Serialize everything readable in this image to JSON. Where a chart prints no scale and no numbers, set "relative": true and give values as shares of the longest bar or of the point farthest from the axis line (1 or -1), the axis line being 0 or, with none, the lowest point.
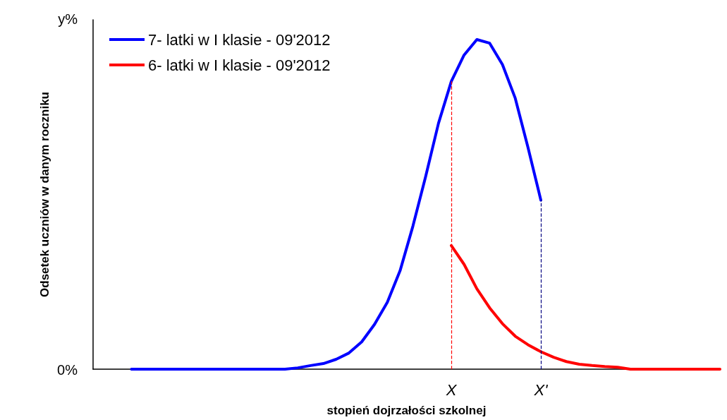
{
  "chart_data": {
    "type": "line",
    "relative": true,
    "xlabel": "stopień dojrzałości szkolnej",
    "ylabel": "Odsetek uczniów w danym roczniku",
    "annotations": [
      "0%",
      "y%"
    ],
    "categories": [
      null,
      null,
      null,
      null,
      null,
      null,
      null,
      null,
      null,
      null,
      null,
      null,
      null,
      null,
      null,
      null,
      null,
      null,
      null,
      null,
      null,
      null,
      null,
      null,
      null,
      null,
      null,
      null,
      "X",
      null,
      null,
      null,
      null,
      null,
      null,
      "X'",
      null,
      null,
      null,
      null,
      null,
      null,
      null,
      null,
      null,
      null,
      null,
      null,
      null,
      null
    ],
    "grid": false,
    "legend": "top left",
    "marker": "none",
    "line_style": "solid",
    "series": [
      {
        "name": "7- latki w I klasie - 09'2012",
        "color": "#0000ff",
        "values": [
          null,
          null,
          null,
          0,
          0,
          0,
          0,
          0,
          0,
          0,
          0,
          0,
          0,
          0,
          0,
          0,
          0.004,
          0.011,
          0.017,
          0.03,
          0.049,
          0.083,
          0.136,
          0.203,
          0.299,
          0.434,
          0.585,
          0.746,
          0.873,
          0.953,
          1.0,
          0.989,
          0.924,
          0.822,
          0.672,
          0.513,
          null,
          null,
          null,
          null,
          null,
          null,
          null,
          null,
          null,
          null,
          null,
          null,
          null,
          null
        ]
      },
      {
        "name": "6- latki w I klasie - 09'2012",
        "color": "#ff0000",
        "values": [
          null,
          null,
          null,
          null,
          null,
          null,
          null,
          null,
          null,
          null,
          null,
          null,
          null,
          null,
          null,
          null,
          null,
          null,
          null,
          null,
          null,
          null,
          null,
          null,
          null,
          null,
          null,
          null,
          0.375,
          0.318,
          0.244,
          0.186,
          0.138,
          0.1,
          0.074,
          0.053,
          0.036,
          0.023,
          0.015,
          0.011,
          0.008,
          0.006,
          0,
          0,
          0,
          0,
          0,
          0,
          0,
          0
        ]
      }
    ],
    "ref_lines": [
      {
        "axis": "x",
        "value": "X",
        "color": "#ff0000",
        "line_style": "dashed"
      },
      {
        "axis": "x",
        "value": "X'",
        "color": "#000080",
        "line_style": "dashed"
      }
    ]
  }
}
